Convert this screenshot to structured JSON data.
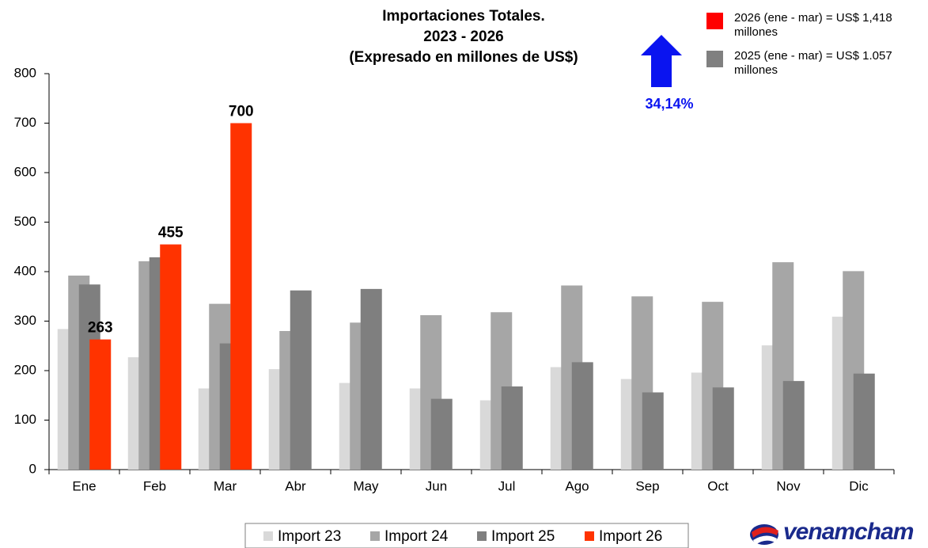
{
  "chart_data": {
    "type": "bar",
    "title": [
      "Importaciones Totales.",
      "2023 - 2026",
      "(Expresado en millones de US$)"
    ],
    "categories": [
      "Ene",
      "Feb",
      "Mar",
      "Abr",
      "May",
      "Jun",
      "Jul",
      "Ago",
      "Sep",
      "Oct",
      "Nov",
      "Dic"
    ],
    "series": [
      {
        "name": "Import 23",
        "color": "#d9d9d9",
        "values": [
          284,
          227,
          164,
          203,
          175,
          164,
          140,
          207,
          183,
          196,
          251,
          309
        ]
      },
      {
        "name": "Import 24",
        "color": "#a6a6a6",
        "values": [
          392,
          421,
          335,
          280,
          297,
          312,
          318,
          372,
          350,
          339,
          419,
          401
        ]
      },
      {
        "name": "Import 25",
        "color": "#7f7f7f",
        "values": [
          374,
          429,
          255,
          362,
          365,
          143,
          168,
          217,
          156,
          166,
          179,
          194
        ]
      },
      {
        "name": "Import 26",
        "color": "#ff3300",
        "values": [
          263,
          455,
          700,
          null,
          null,
          null,
          null,
          null,
          null,
          null,
          null,
          null
        ]
      }
    ],
    "data_labels_series": 3,
    "ylim": [
      0,
      800
    ],
    "yticks": [
      0,
      100,
      200,
      300,
      400,
      500,
      600,
      700,
      800
    ],
    "annotations": [
      {
        "lines": [
          "2026 (ene - mar) = US$ 1,418",
          "millones"
        ],
        "color": "#ff0000"
      },
      {
        "lines": [
          "2025 (ene - mar) = US$ 1.057",
          "millones"
        ],
        "color": "#808080"
      }
    ],
    "change_label": "34,14%",
    "change_color": "#0a14f0",
    "logo": "venamcham"
  }
}
